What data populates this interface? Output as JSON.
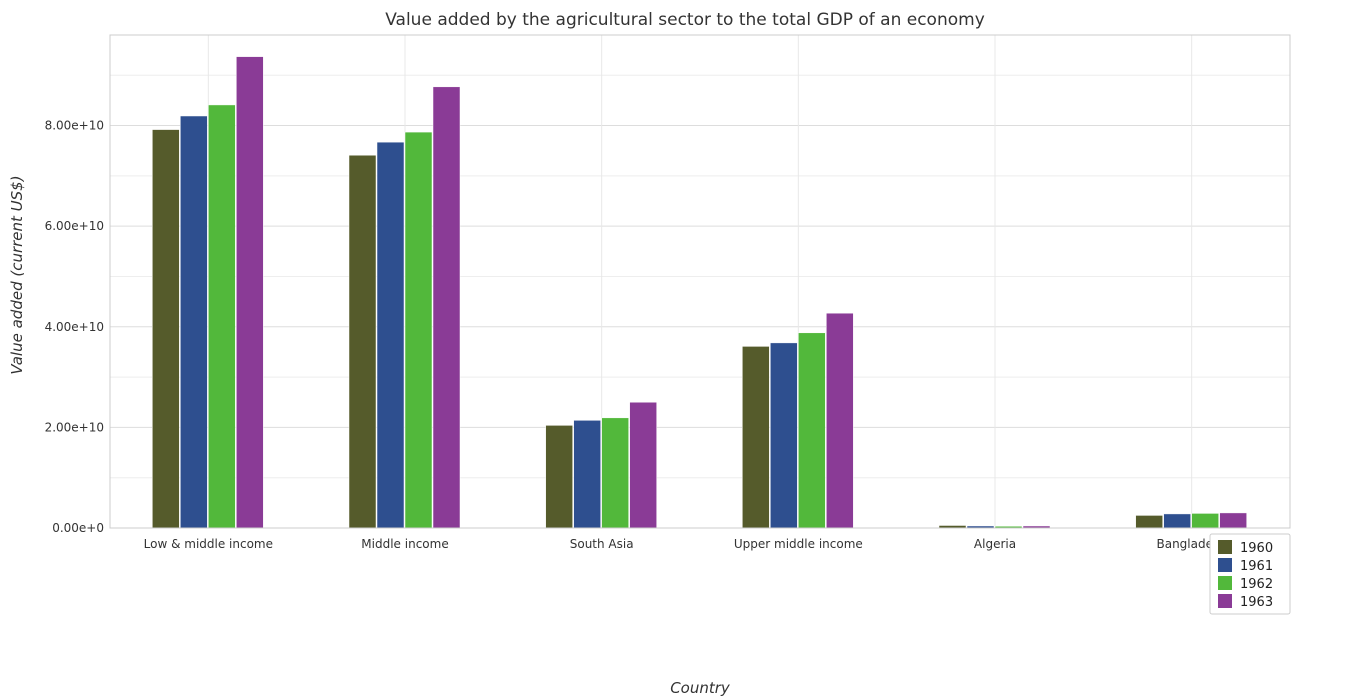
{
  "chart_data": {
    "type": "bar",
    "title": "Value added by the agricultural sector to the total GDP of an economy",
    "xlabel": "Country",
    "ylabel": "Value added (current US$)",
    "ylim": [
      0,
      98000000000
    ],
    "yticks": [
      0,
      20000000000,
      40000000000,
      60000000000,
      80000000000
    ],
    "ytick_labels": [
      "0.00e+0",
      "2.00e+10",
      "4.00e+10",
      "6.00e+10",
      "8.00e+10"
    ],
    "categories": [
      "Low & middle income",
      "Middle income",
      "South Asia",
      "Upper middle income",
      "Algeria",
      "Bangladesh"
    ],
    "series": [
      {
        "name": "1960",
        "color": "#555b2b",
        "values": [
          79200000000,
          74100000000,
          20400000000,
          36100000000,
          500000000,
          2500000000
        ]
      },
      {
        "name": "1961",
        "color": "#2e4f8f",
        "values": [
          81900000000,
          76700000000,
          21400000000,
          36800000000,
          400000000,
          2800000000
        ]
      },
      {
        "name": "1962",
        "color": "#52b83b",
        "values": [
          84100000000,
          78700000000,
          21900000000,
          38800000000,
          350000000,
          2900000000
        ]
      },
      {
        "name": "1963",
        "color": "#8a3b96",
        "values": [
          93700000000,
          87700000000,
          25000000000,
          42700000000,
          400000000,
          3000000000
        ]
      }
    ],
    "grid": true,
    "legend_position": "bottom-right"
  }
}
